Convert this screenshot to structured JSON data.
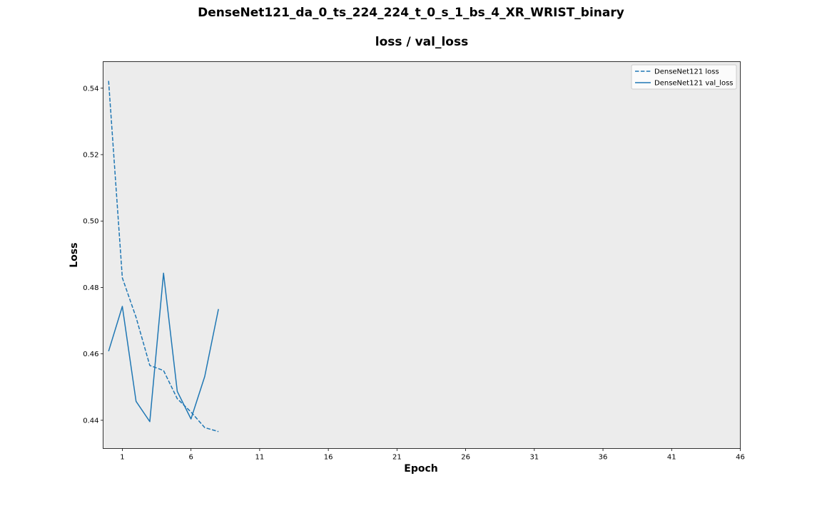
{
  "figure": {
    "suptitle": "DenseNet121_da_0_ts_224_224_t_0_s_1_bs_4_XR_WRIST_binary"
  },
  "chart_data": {
    "type": "line",
    "title": "loss / val_loss",
    "xlabel": "Epoch",
    "ylabel": "Loss",
    "xlim": [
      -0.4,
      46
    ],
    "ylim": [
      0.4315,
      0.548
    ],
    "xticks": [
      1,
      6,
      11,
      16,
      21,
      26,
      31,
      36,
      41,
      46
    ],
    "yticks": [
      0.44,
      0.46,
      0.48,
      0.5,
      0.52,
      0.54
    ],
    "ytick_labels": [
      "0.44",
      "0.46",
      "0.48",
      "0.50",
      "0.52",
      "0.54"
    ],
    "grid": false,
    "legend_position": "top-right",
    "plot_background": "#ececec",
    "x": [
      0,
      1,
      2,
      3,
      4,
      5,
      6,
      7,
      8
    ],
    "series": [
      {
        "name": "DenseNet121 loss",
        "style": "dashed",
        "color": "#1f77b4",
        "values": [
          0.5422,
          0.4829,
          0.471,
          0.4565,
          0.455,
          0.4465,
          0.4425,
          0.4378,
          0.4366
        ]
      },
      {
        "name": "DenseNet121 val_loss",
        "style": "solid",
        "color": "#1f77b4",
        "values": [
          0.4608,
          0.4743,
          0.4457,
          0.4396,
          0.4843,
          0.4487,
          0.4404,
          0.4532,
          0.4735
        ]
      }
    ]
  }
}
